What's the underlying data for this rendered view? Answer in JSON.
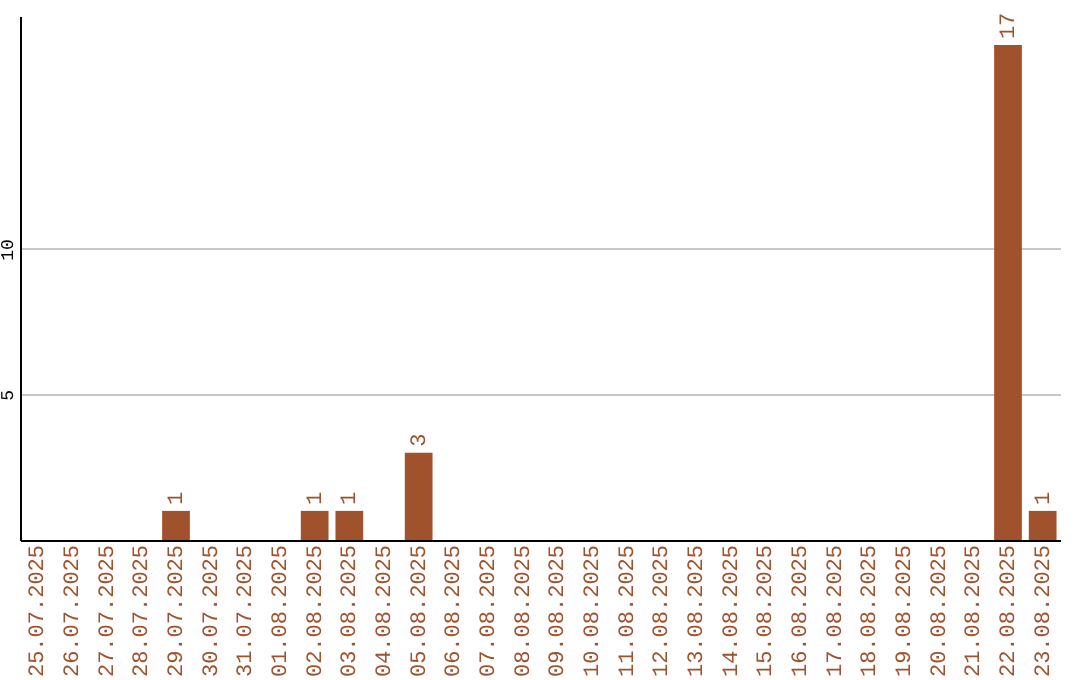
{
  "chart_data": {
    "type": "bar",
    "categories": [
      "25.07.2025",
      "26.07.2025",
      "27.07.2025",
      "28.07.2025",
      "29.07.2025",
      "30.07.2025",
      "31.07.2025",
      "01.08.2025",
      "02.08.2025",
      "03.08.2025",
      "04.08.2025",
      "05.08.2025",
      "06.08.2025",
      "07.08.2025",
      "08.08.2025",
      "09.08.2025",
      "10.08.2025",
      "11.08.2025",
      "12.08.2025",
      "13.08.2025",
      "14.08.2025",
      "15.08.2025",
      "16.08.2025",
      "17.08.2025",
      "18.08.2025",
      "19.08.2025",
      "20.08.2025",
      "21.08.2025",
      "22.08.2025",
      "23.08.2025"
    ],
    "values": [
      0,
      0,
      0,
      0,
      1,
      0,
      0,
      0,
      1,
      1,
      0,
      3,
      0,
      0,
      0,
      0,
      0,
      0,
      0,
      0,
      0,
      0,
      0,
      0,
      0,
      0,
      0,
      0,
      17,
      1
    ],
    "value_labels": [
      null,
      null,
      null,
      null,
      "1",
      null,
      null,
      null,
      "1",
      "1",
      null,
      "3",
      null,
      null,
      null,
      null,
      null,
      null,
      null,
      null,
      null,
      null,
      null,
      null,
      null,
      null,
      null,
      null,
      "17",
      "1"
    ],
    "color": "#a0522d",
    "ylim": [
      0,
      18
    ],
    "yticks": [
      5,
      10
    ],
    "grid": "y"
  }
}
